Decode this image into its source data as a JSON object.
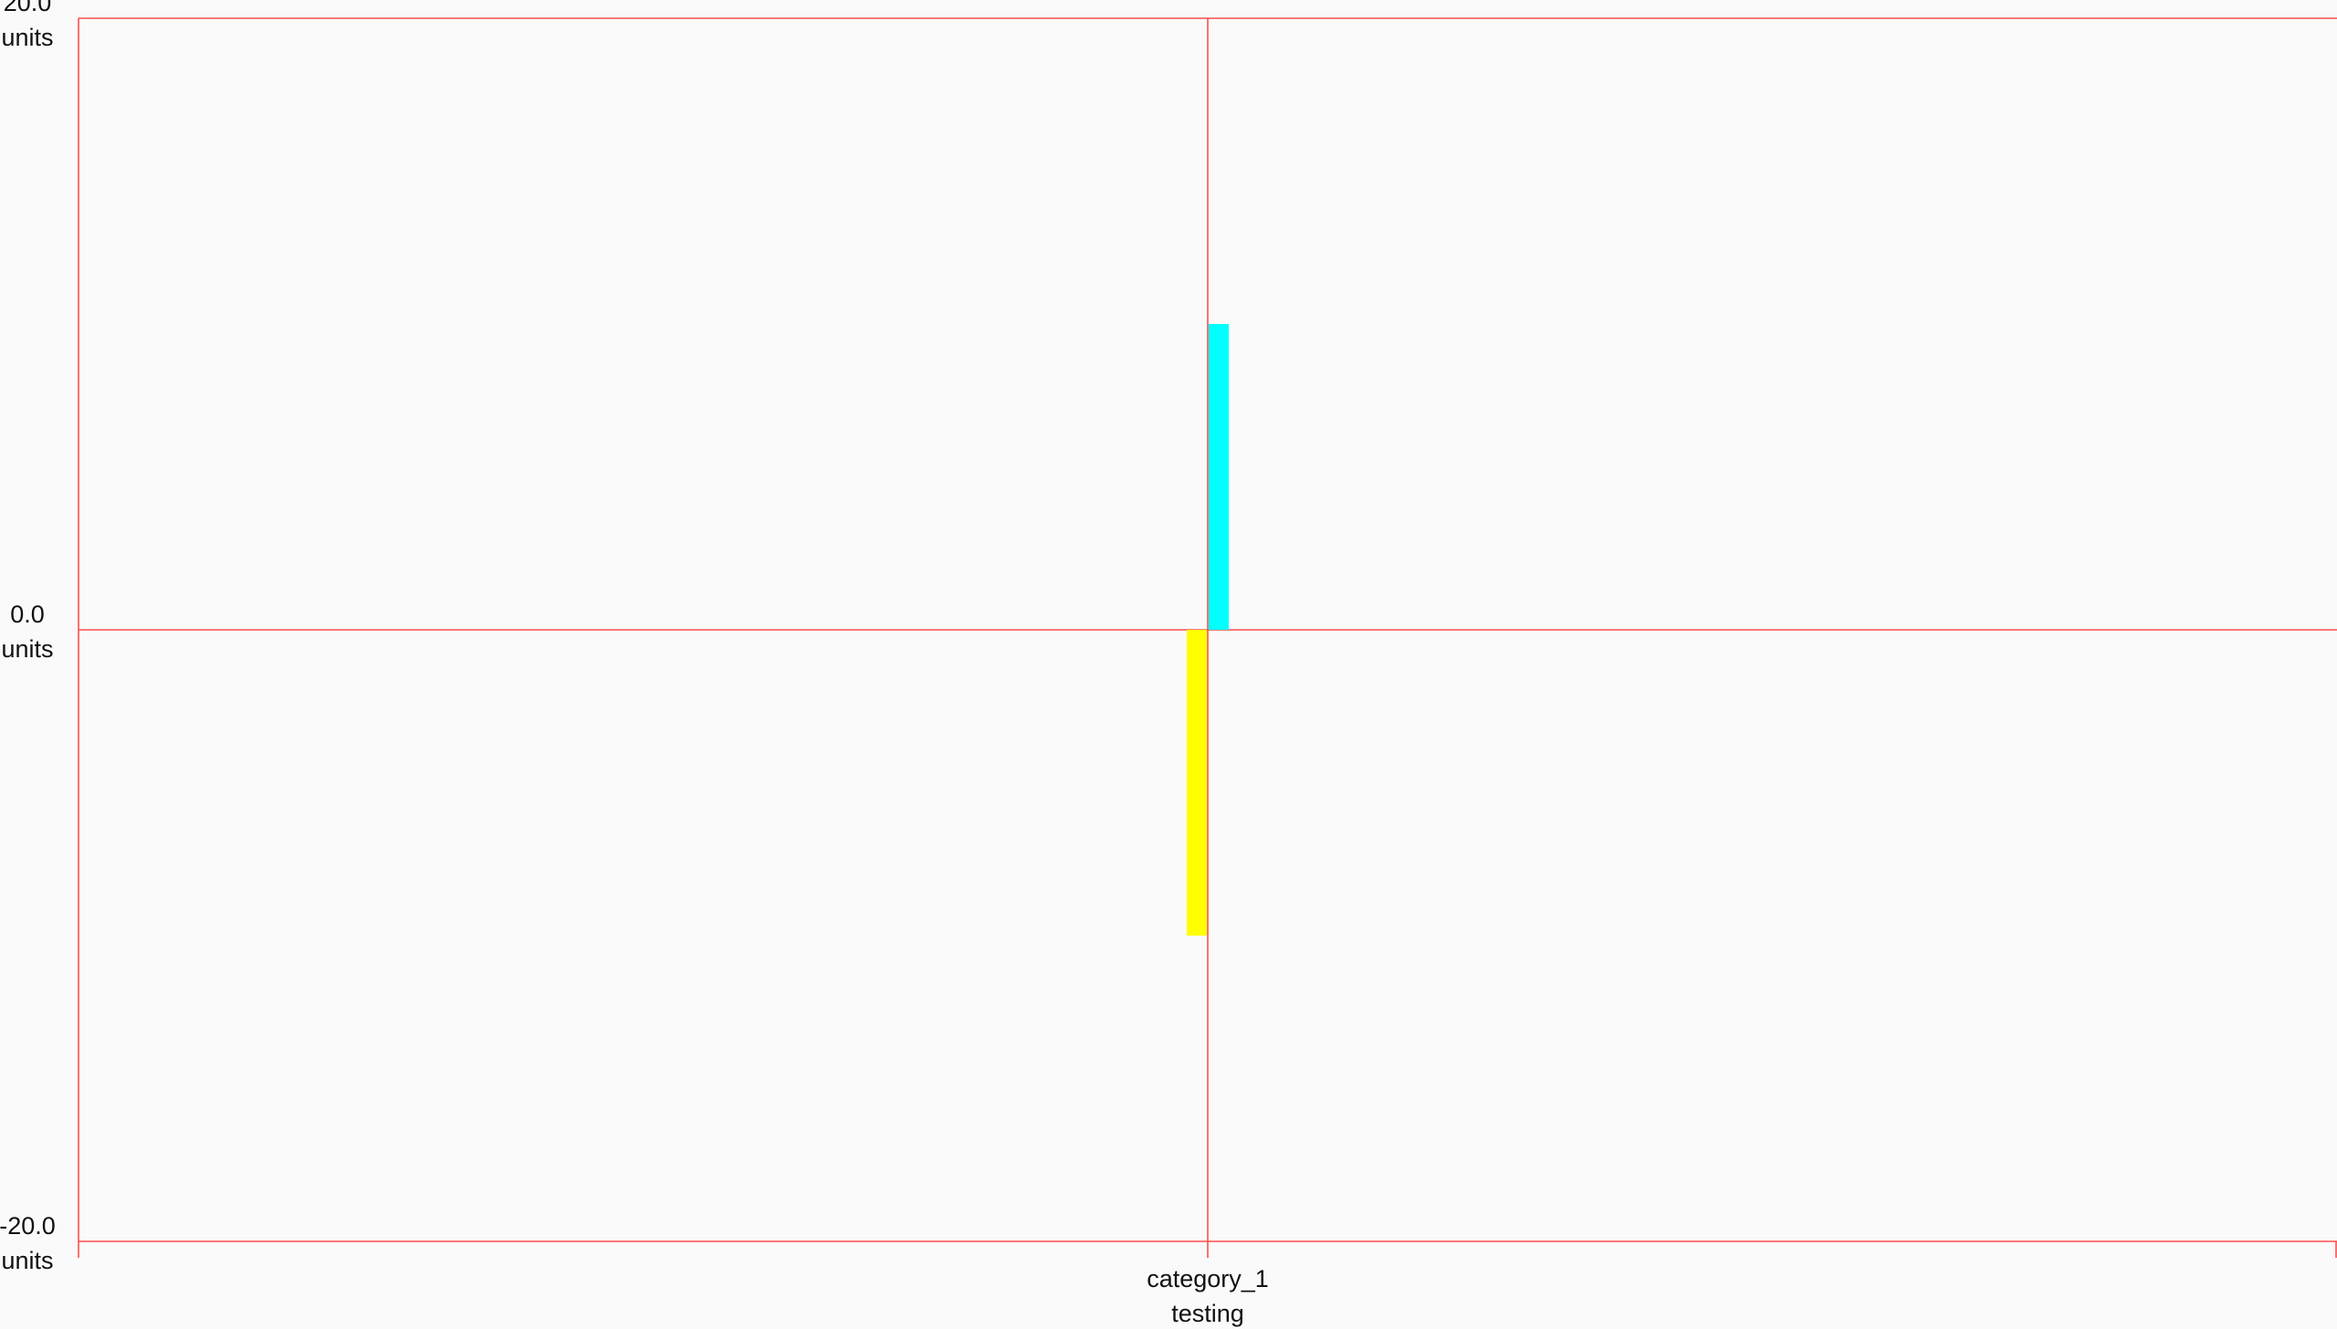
{
  "chart_data": {
    "type": "bar",
    "categories": [
      "category_1"
    ],
    "category_sublabels": [
      "testing"
    ],
    "series": [
      {
        "values": [
          -10
        ],
        "color": "#ffff00"
      },
      {
        "values": [
          10
        ],
        "color": "#00ffff"
      }
    ],
    "title": "",
    "xlabel": "",
    "ylabel": "",
    "ylim": [
      -20,
      20
    ],
    "y_ticks": [
      {
        "value": 20,
        "label": "20.0",
        "unit": "units"
      },
      {
        "value": 0,
        "label": "0.0",
        "unit": "units"
      },
      {
        "value": -20,
        "label": "-20.0",
        "unit": "units"
      }
    ],
    "grid": true,
    "grid_color": "#ff4d4d",
    "background_color": "#fafafa",
    "legend": "none"
  }
}
